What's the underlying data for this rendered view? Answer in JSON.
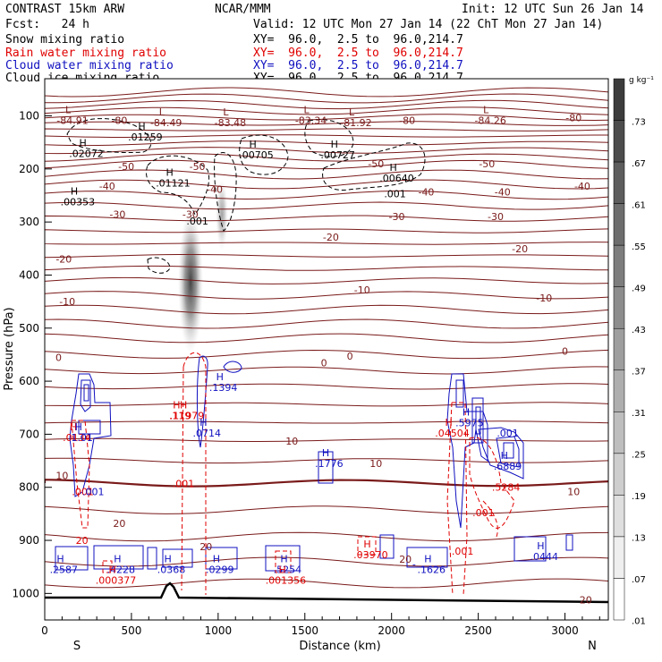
{
  "header": {
    "model": "CONTRAST 15km ARW",
    "org": "NCAR/MMM",
    "init": "Init: 12 UTC Sun 26 Jan 14",
    "fcst": "Fcst:   24 h",
    "valid": "Valid: 12 UTC Mon 27 Jan 14 (22 ChT Mon 27 Jan 14)"
  },
  "fields": [
    {
      "name": "Snow mixing ratio",
      "xy": "XY=  96.0,  2.5 to  96.0,214.7",
      "color": "#000000"
    },
    {
      "name": "Rain water mixing ratio",
      "xy": "XY=  96.0,  2.5 to  96.0,214.7",
      "color": "#e00000"
    },
    {
      "name": "Cloud water mixing ratio",
      "xy": "XY=  96.0,  2.5 to  96.0,214.7",
      "color": "#1010c0"
    },
    {
      "name": "Cloud ice mixing ratio",
      "xy": "XY=  96.0,  2.5 to  96.0,214.7",
      "color": "#000000"
    }
  ],
  "colors": {
    "temperature": "#7a1a1a",
    "rain": "#e00000",
    "cloud_water": "#1010c0",
    "ice": "#000000"
  },
  "chart_data": {
    "type": "contour",
    "xlabel": "Distance (km)",
    "ylabel": "Pressure (hPa)",
    "xlim": [
      0,
      3250
    ],
    "ylim": [
      1050,
      30
    ],
    "x_ticks": [
      0,
      500,
      1000,
      1500,
      2000,
      2500,
      3000
    ],
    "y_ticks": [
      100,
      200,
      300,
      400,
      500,
      600,
      700,
      800,
      900,
      1000
    ],
    "x_end_labels": {
      "left": "S",
      "right": "N"
    },
    "colorbar": {
      "unit": "g kg⁻¹",
      "levels": [
        ".73",
        ".67",
        ".61",
        ".55",
        ".49",
        ".43",
        ".37",
        ".31",
        ".25",
        ".19",
        ".13",
        ".07",
        ".01"
      ]
    },
    "temperature_contours": [
      {
        "label": "-80",
        "x": 3050,
        "p": 103
      },
      {
        "label": "-80",
        "x": 430,
        "p": 108
      },
      {
        "label": "-80",
        "x": 2090,
        "p": 108
      },
      {
        "label": "-50",
        "x": 2550,
        "p": 190
      },
      {
        "label": "-50",
        "x": 470,
        "p": 195
      },
      {
        "label": "-50",
        "x": 880,
        "p": 195
      },
      {
        "label": "-50",
        "x": 1910,
        "p": 190
      },
      {
        "label": "-40",
        "x": 360,
        "p": 232
      },
      {
        "label": "-40",
        "x": 980,
        "p": 238
      },
      {
        "label": "-40",
        "x": 2200,
        "p": 243
      },
      {
        "label": "-40",
        "x": 2640,
        "p": 243
      },
      {
        "label": "-40",
        "x": 3100,
        "p": 232
      },
      {
        "label": "-30",
        "x": 420,
        "p": 285
      },
      {
        "label": "-30",
        "x": 840,
        "p": 285
      },
      {
        "label": "-30",
        "x": 2030,
        "p": 290
      },
      {
        "label": "-30",
        "x": 2600,
        "p": 290
      },
      {
        "label": "-20",
        "x": 1650,
        "p": 328
      },
      {
        "label": "-20",
        "x": 2740,
        "p": 350
      },
      {
        "label": "-20",
        "x": 110,
        "p": 370
      },
      {
        "label": "-10",
        "x": 1830,
        "p": 428
      },
      {
        "label": "-10",
        "x": 2880,
        "p": 443
      },
      {
        "label": "-10",
        "x": 130,
        "p": 450
      },
      {
        "label": "0",
        "x": 80,
        "p": 555
      },
      {
        "label": "0",
        "x": 1610,
        "p": 565
      },
      {
        "label": "0",
        "x": 1760,
        "p": 553
      },
      {
        "label": "0",
        "x": 3000,
        "p": 543
      },
      {
        "label": "10",
        "x": 1425,
        "p": 713
      },
      {
        "label": "10",
        "x": 1910,
        "p": 755
      },
      {
        "label": "10",
        "x": 3050,
        "p": 808
      },
      {
        "label": "10",
        "x": 100,
        "p": 778
      },
      {
        "label": "20",
        "x": 430,
        "p": 868
      },
      {
        "label": "20",
        "x": 930,
        "p": 912
      },
      {
        "label": "20",
        "x": 2080,
        "p": 935
      },
      {
        "label": "20",
        "x": 3120,
        "p": 1012
      }
    ],
    "maxima": [
      {
        "field": "temperature",
        "mark": "L",
        "value": "-84.91",
        "x": 160,
        "p": 108
      },
      {
        "field": "temperature",
        "mark": "L",
        "value": "-84.49",
        "x": 700,
        "p": 113
      },
      {
        "field": "temperature",
        "mark": "L",
        "value": "-83.48",
        "x": 1070,
        "p": 113
      },
      {
        "field": "temperature",
        "mark": "L",
        "value": "-83.34",
        "x": 1535,
        "p": 108
      },
      {
        "field": "temperature",
        "mark": "L",
        "value": "-81.92",
        "x": 1795,
        "p": 113
      },
      {
        "field": "temperature",
        "mark": "L",
        "value": "-84.26",
        "x": 2570,
        "p": 108
      },
      {
        "field": "ice",
        "mark": "H",
        "value": ".01259",
        "x": 580,
        "p": 140
      },
      {
        "field": "ice",
        "mark": "H",
        "value": ".02072",
        "x": 240,
        "p": 171
      },
      {
        "field": "ice",
        "mark": "H",
        "value": ".00705",
        "x": 1220,
        "p": 173
      },
      {
        "field": "ice",
        "mark": "H",
        "value": ".00727",
        "x": 1690,
        "p": 173
      },
      {
        "field": "ice",
        "mark": "H",
        "value": ".00640",
        "x": 2030,
        "p": 217
      },
      {
        "field": "ice",
        "mark": "H",
        "value": ".01121",
        "x": 740,
        "p": 226
      },
      {
        "field": "ice",
        "mark": "H",
        "value": ".00353",
        "x": 190,
        "p": 262
      },
      {
        "field": "ice",
        "mark": "",
        "value": ".001",
        "x": 880,
        "p": 298
      },
      {
        "field": "ice",
        "mark": "",
        "value": ".001",
        "x": 2020,
        "p": 247
      },
      {
        "field": "cloud_water",
        "mark": "H",
        "value": ".1394",
        "x": 1030,
        "p": 612
      },
      {
        "field": "rain",
        "mark": "H",
        "value": ".119",
        "x": 780,
        "p": 665
      },
      {
        "field": "rain",
        "mark": "H",
        "value": ".11979",
        "x": 820,
        "p": 665
      },
      {
        "field": "cloud_water",
        "mark": "H",
        "value": ".0714",
        "x": 935,
        "p": 698
      },
      {
        "field": "rain",
        "mark": "H",
        "value": ".0134",
        "x": 185,
        "p": 706
      },
      {
        "field": "cloud_water",
        "mark": "H",
        "value": "1.01",
        "x": 215,
        "p": 706
      },
      {
        "field": "cloud_water",
        "mark": "H",
        "value": ".1776",
        "x": 1640,
        "p": 755
      },
      {
        "field": "cloud_water",
        "mark": "H",
        "value": ".5975",
        "x": 2450,
        "p": 678
      },
      {
        "field": "rain",
        "mark": "H",
        "value": ".04504",
        "x": 2350,
        "p": 698
      },
      {
        "field": "cloud_water",
        "mark": "H",
        "value": ".6889",
        "x": 2670,
        "p": 760
      },
      {
        "field": "cloud_water",
        "mark": "",
        "value": ".001",
        "x": 2670,
        "p": 698
      },
      {
        "field": "rain",
        "mark": "",
        "value": ".5284",
        "x": 2660,
        "p": 800
      },
      {
        "field": "rain",
        "mark": "",
        "value": ".001",
        "x": 2530,
        "p": 848
      },
      {
        "field": "rain",
        "mark": "",
        "value": ".001",
        "x": 800,
        "p": 793
      },
      {
        "field": "rain",
        "mark": "",
        "value": ".001",
        "x": 220,
        "p": 808
      },
      {
        "field": "cloud_water",
        "mark": "",
        "value": ".001",
        "x": 280,
        "p": 808
      },
      {
        "field": "rain",
        "mark": "",
        "value": "20",
        "x": 215,
        "p": 900
      },
      {
        "field": "cloud_water",
        "mark": "H",
        "value": ".2587",
        "x": 110,
        "p": 955
      },
      {
        "field": "cloud_water",
        "mark": "H",
        "value": ".4228",
        "x": 440,
        "p": 955
      },
      {
        "field": "rain",
        "mark": "H",
        "value": ".000377",
        "x": 410,
        "p": 975
      },
      {
        "field": "cloud_water",
        "mark": "H",
        "value": ".0368",
        "x": 730,
        "p": 955
      },
      {
        "field": "cloud_water",
        "mark": "H",
        "value": ".0299",
        "x": 1010,
        "p": 955
      },
      {
        "field": "cloud_water",
        "mark": "H",
        "value": ".5254",
        "x": 1400,
        "p": 955
      },
      {
        "field": "rain",
        "mark": "H",
        "value": ".001356",
        "x": 1390,
        "p": 975
      },
      {
        "field": "rain",
        "mark": "H",
        "value": ".03970",
        "x": 1880,
        "p": 927
      },
      {
        "field": "cloud_water",
        "mark": "H",
        "value": ".1626",
        "x": 2230,
        "p": 955
      },
      {
        "field": "cloud_water",
        "mark": "H",
        "value": ".0444",
        "x": 2880,
        "p": 930
      },
      {
        "field": "rain",
        "mark": "",
        "value": ".001",
        "x": 2410,
        "p": 920
      },
      {
        "field": "cloud_water",
        "mark": "",
        "value": "-",
        "x": 2130,
        "p": 945
      }
    ]
  }
}
